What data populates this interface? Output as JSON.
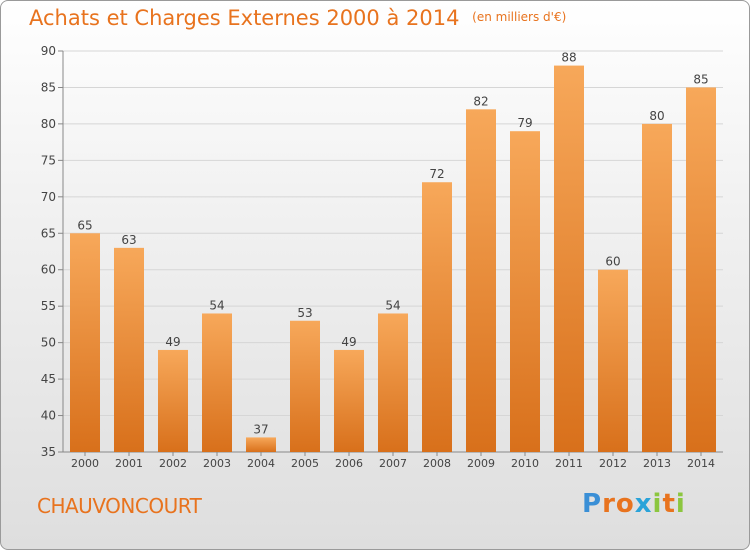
{
  "header": {
    "title": "Achats et Charges Externes 2000 à 2014",
    "subtitle": "(en milliers d'€)"
  },
  "footer": {
    "commune": "CHAUVONCOURT",
    "logo_letters": [
      "P",
      "r",
      "o",
      "x",
      "i",
      "t",
      "i"
    ],
    "logo_colors": [
      "#3a8fd6",
      "#e8731e",
      "#e8731e",
      "#2aa3d9",
      "#8cc63f",
      "#e8731e",
      "#8cc63f"
    ]
  },
  "colors": {
    "bar_light": "#f7a85a",
    "bar_dark": "#d8701b",
    "title": "#e8731e"
  },
  "chart_data": {
    "type": "bar",
    "categories": [
      "2000",
      "2001",
      "2002",
      "2003",
      "2004",
      "2005",
      "2006",
      "2007",
      "2008",
      "2009",
      "2010",
      "2011",
      "2012",
      "2013",
      "2014"
    ],
    "values": [
      65,
      63,
      49,
      54,
      37,
      53,
      49,
      54,
      72,
      82,
      79,
      88,
      60,
      80,
      85
    ],
    "ylim": [
      35,
      90
    ],
    "yticks": [
      35,
      40,
      45,
      50,
      55,
      60,
      65,
      70,
      75,
      80,
      85,
      90
    ],
    "grid": true,
    "data_labels": true
  }
}
